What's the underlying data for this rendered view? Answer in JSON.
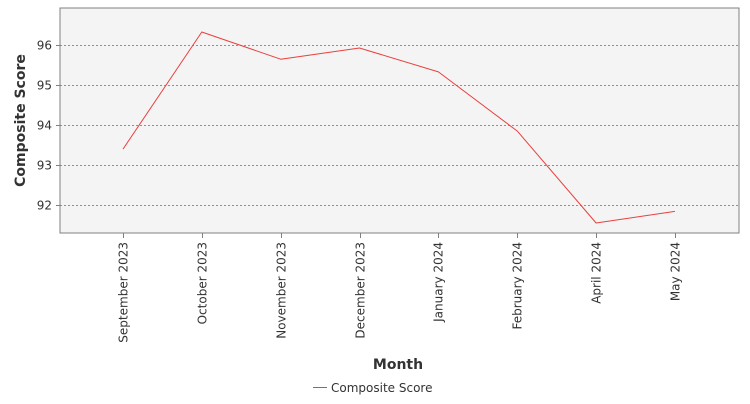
{
  "chart_data": {
    "type": "line",
    "title": "",
    "xlabel": "Month",
    "ylabel": "Composite Score",
    "categories": [
      "September 2023",
      "October 2023",
      "November 2023",
      "December 2023",
      "January 2024",
      "February 2024",
      "April 2024",
      "May 2024"
    ],
    "series": [
      {
        "name": "Composite Score",
        "values": [
          93.4,
          96.33,
          95.65,
          95.93,
          95.33,
          93.85,
          91.55,
          91.84
        ]
      }
    ],
    "ylim": [
      91.3,
      96.93
    ],
    "yticks": [
      92,
      93,
      94,
      95,
      96
    ],
    "grid": true,
    "legend_position": "bottom-center",
    "colors": {
      "series": "#e8403f",
      "plot_background": "#f4f4f4",
      "grid": "#6f6f6f",
      "axis": "#808080",
      "text": "#333333"
    }
  }
}
